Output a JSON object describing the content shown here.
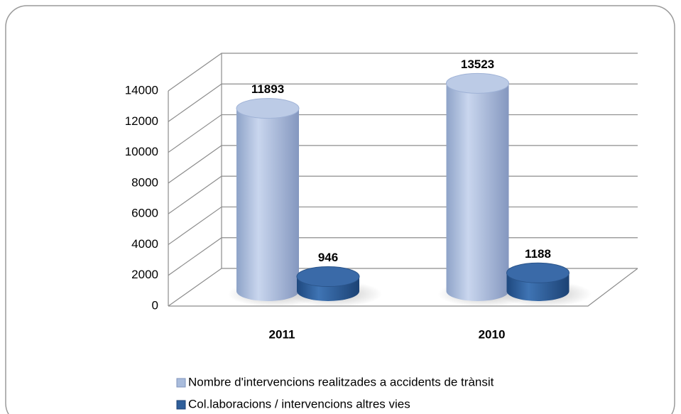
{
  "chart_data": {
    "type": "bar3d",
    "categories": [
      "2011",
      "2010"
    ],
    "series": [
      {
        "name": "Nombre d'intervencions realitzades a accidents de trànsit",
        "color": "#a9bcdc",
        "values": [
          11893,
          13523
        ]
      },
      {
        "name": "Col.laboracions / intervencions altres vies",
        "color": "#2f5f9a",
        "values": [
          946,
          1188
        ]
      }
    ],
    "ylim": [
      0,
      14000
    ],
    "yticks": [
      0,
      2000,
      4000,
      6000,
      8000,
      10000,
      12000,
      14000
    ],
    "grid": true,
    "legend": "bottom"
  }
}
